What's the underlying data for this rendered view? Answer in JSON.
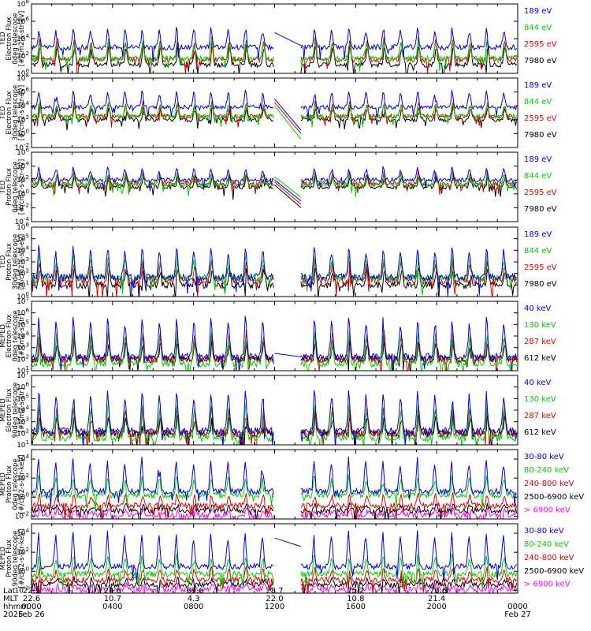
{
  "chart_data": [
    {
      "type": "line",
      "ylabel": [
        "TED",
        "Electron Flux",
        "0deg telescope",
        "[#/cm2-s-str-eV]"
      ],
      "yexp": [
        0,
        2,
        4,
        6,
        8
      ],
      "ylog": [
        0,
        8
      ],
      "series": [
        {
          "name": "7980 eV",
          "color": "#000000",
          "base": 1.0,
          "spike": 2.2
        },
        {
          "name": "2595 eV",
          "color": "#dd0000",
          "base": 1.6,
          "spike": 2.4
        },
        {
          "name": "844 eV",
          "color": "#00cc00",
          "base": 1.7,
          "spike": 2.0
        },
        {
          "name": "189 eV",
          "color": "#0000dd",
          "base": 3.0,
          "spike": 2.2
        }
      ],
      "gap_lines": [
        {
          "color": "#0000dd",
          "from": 4.7,
          "to": 3.2
        }
      ]
    },
    {
      "type": "line",
      "ylabel": [
        "TED",
        "Electron Flux",
        "30deg telescope",
        "[#/cm2-s-str-eV]"
      ],
      "yexp": [
        -2,
        0,
        2,
        4,
        6,
        8
      ],
      "ylog": [
        -2,
        8
      ],
      "series": [
        {
          "name": "7980 eV",
          "color": "#000000",
          "base": 2.0,
          "spike": 1.8
        },
        {
          "name": "2595 eV",
          "color": "#dd0000",
          "base": 2.5,
          "spike": 2.0
        },
        {
          "name": "844 eV",
          "color": "#00cc00",
          "base": 2.5,
          "spike": 1.8
        },
        {
          "name": "189 eV",
          "color": "#0000dd",
          "base": 3.8,
          "spike": 2.4
        }
      ],
      "gap_lines": [
        {
          "color": "#0000dd",
          "from": 5.0,
          "to": 0.5
        },
        {
          "color": "#dd0000",
          "from": 4.5,
          "to": 0.0
        },
        {
          "color": "#00cc00",
          "from": 4.0,
          "to": -0.8
        }
      ]
    },
    {
      "type": "line",
      "ylabel": [
        "TED",
        "Proton Flux",
        "0deg telescope",
        "[#/cm2-s-str-eV]"
      ],
      "yexp": [
        -4,
        -2,
        0,
        2,
        4,
        6
      ],
      "ylog": [
        -4,
        6
      ],
      "series": [
        {
          "name": "7980 eV",
          "color": "#000000",
          "base": 1.0,
          "spike": 1.6
        },
        {
          "name": "2595 eV",
          "color": "#dd0000",
          "base": 1.5,
          "spike": 1.6
        },
        {
          "name": "844 eV",
          "color": "#00cc00",
          "base": 1.3,
          "spike": 1.5
        },
        {
          "name": "189 eV",
          "color": "#0000dd",
          "base": 2.0,
          "spike": 1.7
        }
      ],
      "gap_lines": [
        {
          "color": "#00cc00",
          "from": 2.5,
          "to": -0.5
        },
        {
          "color": "#0000dd",
          "from": 2.0,
          "to": -1.0
        },
        {
          "color": "#dd0000",
          "from": 1.7,
          "to": -1.5
        },
        {
          "color": "#000000",
          "from": 1.3,
          "to": -2.0
        }
      ]
    },
    {
      "type": "line",
      "ylabel": [
        "TED",
        "Proton Flux",
        "30deg telescope",
        "[#/cm2-s-str-eV]"
      ],
      "yexp": [
        0,
        1,
        2,
        3,
        4,
        5,
        6
      ],
      "ylog": [
        0,
        6
      ],
      "series": [
        {
          "name": "7980 eV",
          "color": "#000000",
          "base": 1.0,
          "spike": 1.4
        },
        {
          "name": "2595 eV",
          "color": "#dd0000",
          "base": 1.4,
          "spike": 1.6
        },
        {
          "name": "844 eV",
          "color": "#00cc00",
          "base": 1.6,
          "spike": 2.0
        },
        {
          "name": "189 eV",
          "color": "#0000dd",
          "base": 1.7,
          "spike": 2.6
        }
      ],
      "gap_lines": []
    },
    {
      "type": "line",
      "ylabel": [
        "MEPED",
        "Electron Flux",
        "0deg telescope",
        "[#/cm2-s-str]"
      ],
      "yexp": [
        1,
        2,
        3,
        4,
        5,
        6,
        7
      ],
      "ylog": [
        1,
        7
      ],
      "series": [
        {
          "name": "612 keV",
          "color": "#000000",
          "base": 2.0,
          "spike": 1.6
        },
        {
          "name": "287 keV",
          "color": "#dd0000",
          "base": 2.0,
          "spike": 2.4
        },
        {
          "name": "130 keV",
          "color": "#00cc00",
          "base": 1.6,
          "spike": 2.8
        },
        {
          "name": "40 keV",
          "color": "#0000dd",
          "base": 2.2,
          "spike": 3.4
        }
      ],
      "gap_lines": [
        {
          "color": "#0000dd",
          "from": 2.5,
          "to": 2.2
        }
      ]
    },
    {
      "type": "line",
      "ylabel": [
        "MEPED",
        "Electron Flux",
        "90deg telescope",
        "[#/cm2-s-str]"
      ],
      "yexp": [
        1,
        2,
        3,
        4,
        5,
        6,
        7
      ],
      "ylog": [
        1,
        7
      ],
      "series": [
        {
          "name": "612 keV",
          "color": "#000000",
          "base": 2.0,
          "spike": 1.6
        },
        {
          "name": "287 keV",
          "color": "#dd0000",
          "base": 2.0,
          "spike": 2.4
        },
        {
          "name": "130 keV",
          "color": "#00cc00",
          "base": 1.6,
          "spike": 3.0
        },
        {
          "name": "40 keV",
          "color": "#0000dd",
          "base": 2.2,
          "spike": 3.6
        }
      ],
      "gap_lines": []
    },
    {
      "type": "line",
      "ylabel": [
        "MEPED",
        "Proton Flux",
        "0deg telescope",
        "[#/cm2-s-str-keV]"
      ],
      "yexp": [
        -2,
        0,
        2,
        4
      ],
      "ylog": [
        -2.3,
        5
      ],
      "series": [
        {
          "name": "> 6900 keV",
          "color": "#ff00ff",
          "base": -1.9,
          "spike": 0.6
        },
        {
          "name": "2500-6900 keV",
          "color": "#000000",
          "base": -1.4,
          "spike": 0.6
        },
        {
          "name": "240-800 keV",
          "color": "#dd0000",
          "base": -0.9,
          "spike": 1.2
        },
        {
          "name": "80-240 keV",
          "color": "#00cc00",
          "base": 0.2,
          "spike": 2.0
        },
        {
          "name": "30-80 keV",
          "color": "#0000dd",
          "base": 0.6,
          "spike": 3.4
        }
      ],
      "gap_lines": []
    },
    {
      "type": "line",
      "ylabel": [
        "MEPED",
        "Proton Flux",
        "90deg telescope",
        "[#/cm2-s-str-keV]"
      ],
      "yexp": [
        -2,
        0,
        2,
        4
      ],
      "ylog": [
        -2.3,
        5
      ],
      "series": [
        {
          "name": "> 6900 keV",
          "color": "#ff00ff",
          "base": -1.9,
          "spike": 0.6
        },
        {
          "name": "2500-6900 keV",
          "color": "#000000",
          "base": -1.4,
          "spike": 0.6
        },
        {
          "name": "240-800 keV",
          "color": "#dd0000",
          "base": -0.9,
          "spike": 1.2
        },
        {
          "name": "80-240 keV",
          "color": "#00cc00",
          "base": -0.3,
          "spike": 2.0
        },
        {
          "name": "30-80 keV",
          "color": "#0000dd",
          "base": 0.5,
          "spike": 3.6
        }
      ],
      "gap_lines": [
        {
          "color": "#0000dd",
          "from": 3.5,
          "to": 2.6
        }
      ]
    }
  ],
  "x_axis": {
    "row_labels": [
      "Lat",
      "MLT",
      "hhmm",
      "2025"
    ],
    "ticks": [
      {
        "hour": 0,
        "lat": "22.5",
        "mlt": "22.6",
        "hhmm": "0000",
        "date": "Feb 26"
      },
      {
        "hour": 4,
        "lat": "24.6",
        "mlt": "10.7",
        "hhmm": "0400",
        "date": ""
      },
      {
        "hour": 8,
        "lat": "-69.6",
        "mlt": "4.3",
        "hhmm": "0800",
        "date": ""
      },
      {
        "hour": 12,
        "lat": "28.7",
        "mlt": "22.0",
        "hhmm": "1200",
        "date": ""
      },
      {
        "hour": 16,
        "lat": "25.2",
        "mlt": "10.8",
        "hhmm": "1600",
        "date": ""
      },
      {
        "hour": 20,
        "lat": "-70.6",
        "mlt": "21.4",
        "hhmm": "2000",
        "date": ""
      },
      {
        "hour": 24,
        "lat": "",
        "mlt": "",
        "hhmm": "0000",
        "date": "Feb 27"
      }
    ],
    "data_gap_hours": [
      12.0,
      13.3
    ],
    "orbit_period_hours": 1.7
  },
  "colors": {
    "axis": "#000000",
    "background": "#ffffff"
  }
}
